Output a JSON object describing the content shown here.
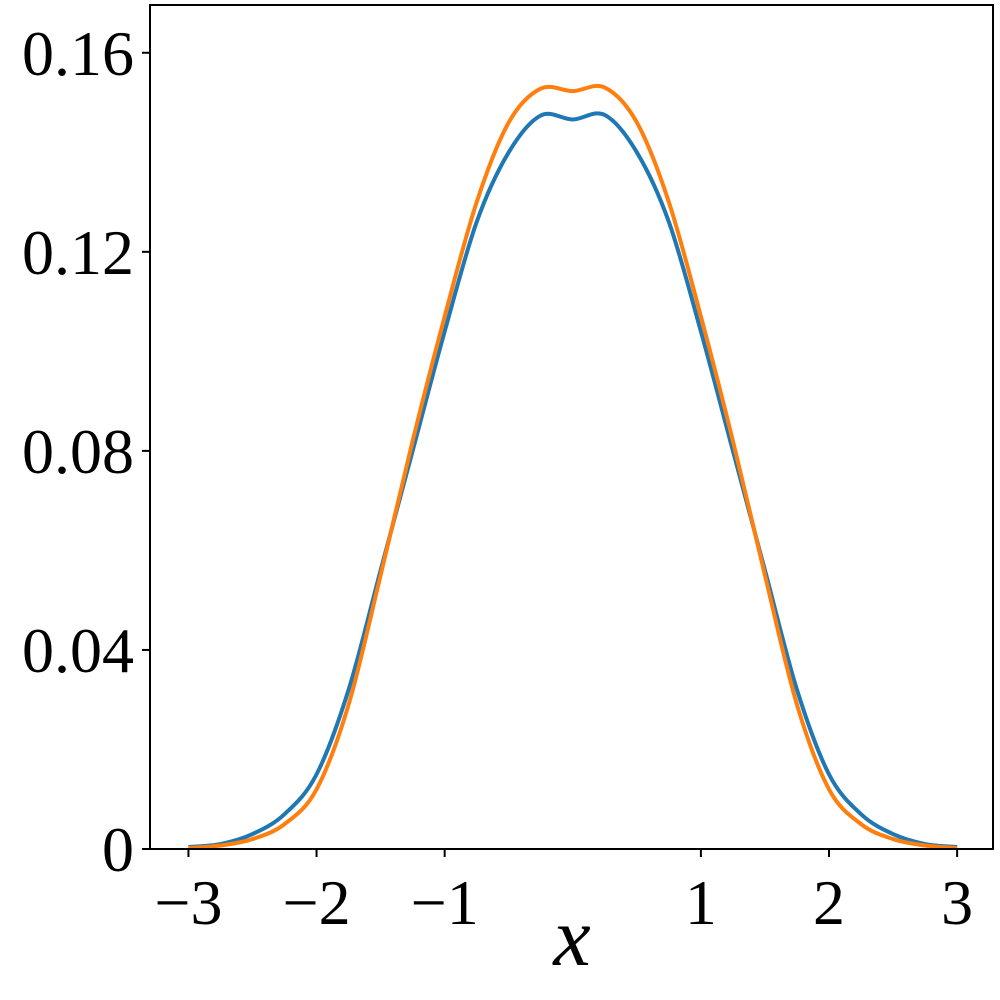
{
  "chart_data": {
    "type": "line",
    "x_label": "x",
    "x": [
      -3,
      -2.75,
      -2.5,
      -2.25,
      -2,
      -1.75,
      -1.5,
      -1.25,
      -1,
      -0.75,
      -0.5,
      -0.25,
      0,
      0.25,
      0.5,
      0.75,
      1,
      1.25,
      1.5,
      1.75,
      2,
      2.25,
      2.5,
      2.75,
      3
    ],
    "series": [
      {
        "color": "#1f77b4",
        "values": [
          0.0004,
          0.001,
          0.003,
          0.007,
          0.015,
          0.032,
          0.056,
          0.08,
          0.104,
          0.126,
          0.14,
          0.1474,
          0.1466,
          0.1475,
          0.14,
          0.126,
          0.104,
          0.08,
          0.056,
          0.032,
          0.015,
          0.007,
          0.003,
          0.001,
          0.0004
        ]
      },
      {
        "color": "#ff7f0e",
        "values": [
          0.0002,
          0.0007,
          0.002,
          0.005,
          0.012,
          0.029,
          0.055,
          0.082,
          0.107,
          0.13,
          0.146,
          0.1528,
          0.1523,
          0.153,
          0.146,
          0.13,
          0.107,
          0.082,
          0.055,
          0.029,
          0.012,
          0.005,
          0.002,
          0.0007,
          0.0002
        ]
      }
    ],
    "xlim": [
      -3.3,
      3.28
    ],
    "ylim": [
      0,
      0.1696
    ],
    "xticks": [
      {
        "value": -3,
        "label": "−3"
      },
      {
        "value": -2,
        "label": "−2"
      },
      {
        "value": -1,
        "label": "−1"
      },
      1,
      2,
      3
    ],
    "yticks": [
      0,
      0.04,
      0.08,
      0.12,
      0.16
    ]
  }
}
